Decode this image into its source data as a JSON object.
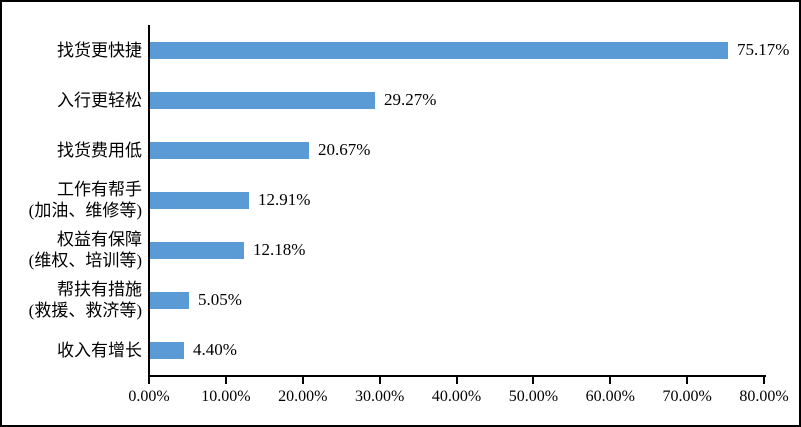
{
  "chart_data": {
    "type": "bar",
    "orientation": "horizontal",
    "categories": [
      [
        "找货更快捷"
      ],
      [
        "入行更轻松"
      ],
      [
        "找货费用低"
      ],
      [
        "工作有帮手",
        "(加油、维修等)"
      ],
      [
        "权益有保障",
        "(维权、培训等)"
      ],
      [
        "帮扶有措施",
        "(救援、救济等)"
      ],
      [
        "收入有增长"
      ]
    ],
    "values": [
      75.17,
      29.27,
      20.67,
      12.91,
      12.18,
      5.05,
      4.4
    ],
    "value_labels": [
      "75.17%",
      "29.27%",
      "20.67%",
      "12.91%",
      "12.18%",
      "5.05%",
      "4.40%"
    ],
    "x_ticks": [
      {
        "value": 0,
        "label": "0.00%"
      },
      {
        "value": 10,
        "label": "10.00%"
      },
      {
        "value": 20,
        "label": "20.00%"
      },
      {
        "value": 30,
        "label": "30.00%"
      },
      {
        "value": 40,
        "label": "40.00%"
      },
      {
        "value": 50,
        "label": "50.00%"
      },
      {
        "value": 60,
        "label": "60.00%"
      },
      {
        "value": 70,
        "label": "70.00%"
      },
      {
        "value": 80,
        "label": "80.00%"
      }
    ],
    "xlim": [
      0,
      80
    ],
    "grid": false,
    "legend_position": "none",
    "colors": {
      "bar": "#5b9bd5",
      "axis": "#000000",
      "text": "#000000",
      "background": "#ffffff",
      "frame_border": "#000000"
    }
  }
}
